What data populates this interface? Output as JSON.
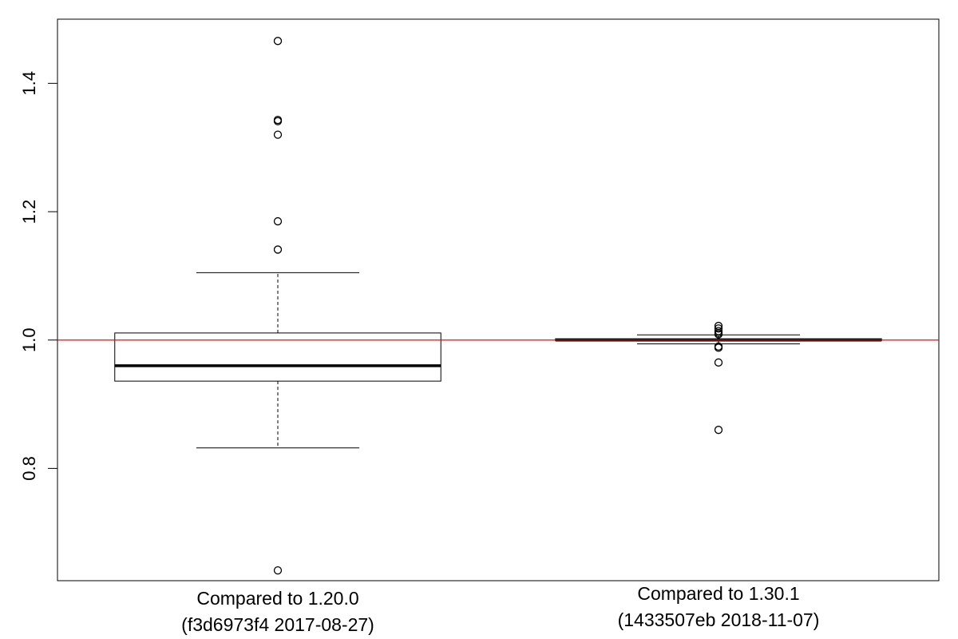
{
  "chart_data": {
    "type": "box",
    "title": "",
    "xlabel": "",
    "ylabel": "",
    "ylim": [
      0.625,
      1.5
    ],
    "yticks": [
      0.8,
      1.0,
      1.2,
      1.4
    ],
    "ytick_labels": [
      "0.8",
      "1.0",
      "1.2",
      "1.4"
    ],
    "grid": false,
    "reference_line": {
      "y": 1.0,
      "color": "#ff0000"
    },
    "boxes": [
      {
        "label_line1": "Compared to 1.20.0",
        "label_line2": "(f3d6973f4 2017-08-27)",
        "whisker_low": 0.832,
        "q1": 0.936,
        "median": 0.96,
        "q3": 1.011,
        "whisker_high": 1.105,
        "outliers": [
          1.466,
          1.343,
          1.341,
          1.32,
          1.185,
          1.141,
          0.641
        ]
      },
      {
        "label_line1": "Compared to 1.30.1",
        "label_line2": "(1433507eb 2018-11-07)",
        "whisker_low": 0.994,
        "q1": 0.999,
        "median": 1.0,
        "q3": 1.002,
        "whisker_high": 1.008,
        "outliers": [
          1.022,
          1.018,
          1.014,
          1.011,
          1.009,
          0.99,
          0.988,
          0.965,
          0.86
        ]
      }
    ]
  }
}
